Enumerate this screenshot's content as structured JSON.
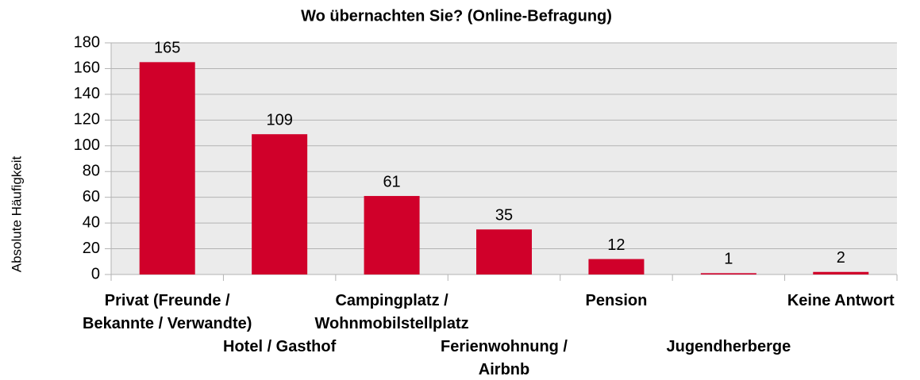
{
  "chart_data": {
    "type": "bar",
    "title": "Wo übernachten Sie? (Online-Befragung)",
    "y_label": "Absolute Häufigkeit",
    "categories": [
      "Privat (Freunde /\nBekannte / Verwandte)",
      "Hotel / Gasthof",
      "Campingplatz /\nWohnmobilstellplatz",
      "Ferienwohnung /\nAirbnb",
      "Pension",
      "Jugendherberge",
      "Keine Antwort"
    ],
    "values": [
      165,
      109,
      61,
      35,
      12,
      1,
      2
    ],
    "color": "#d0002a",
    "ylim": [
      0,
      180
    ],
    "yticks": [
      0,
      20,
      40,
      60,
      80,
      100,
      120,
      140,
      160,
      180
    ],
    "grid": true
  }
}
